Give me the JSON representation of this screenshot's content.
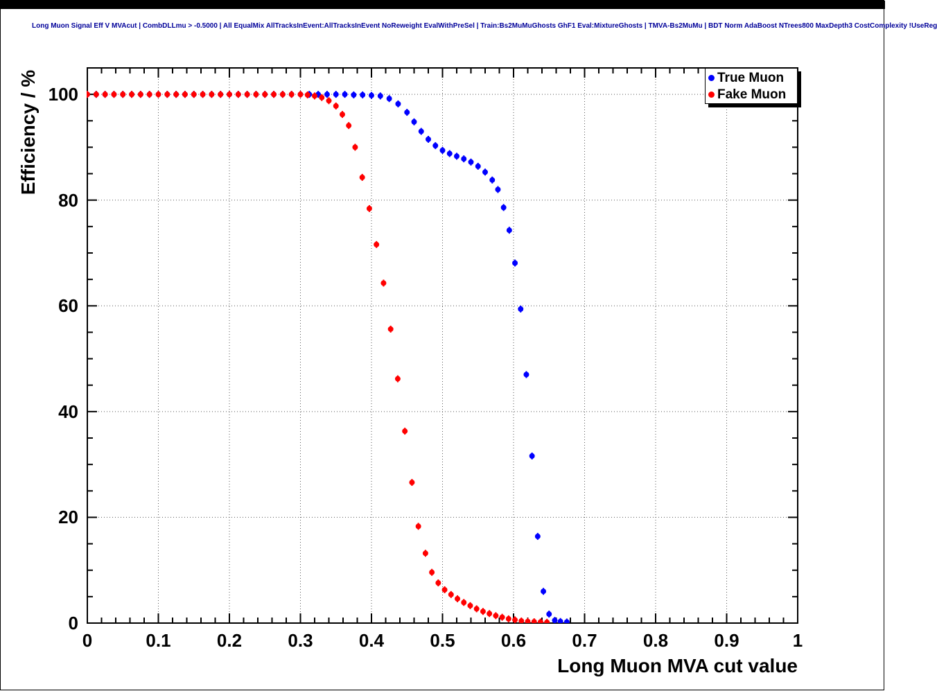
{
  "chart_data": {
    "type": "scatter",
    "title": "Long Muon Signal Eff V MVAcut | CombDLLmu > -0.5000 | All EqualMix AllTracksInEvent:AllTracksInEvent NoReweight EvalWithPreSel | Train:Bs2MuMuGhosts GhF1 Eval:MixtureGhosts | TMVA-Bs2MuMu | BDT Norm AdaBoost NTrees800 MaxDepth3 CostComplexity !UseReg",
    "title_color": "#000099",
    "xlabel": "Long Muon MVA cut value",
    "ylabel": "Efficiency / %",
    "xlim": [
      0,
      1
    ],
    "ylim": [
      0,
      105
    ],
    "x_major_ticks": [
      0,
      0.1,
      0.2,
      0.3,
      0.4,
      0.5,
      0.6,
      0.7,
      0.8,
      0.9,
      1
    ],
    "x_tick_labels": [
      "0",
      "0.1",
      "0.2",
      "0.3",
      "0.4",
      "0.5",
      "0.6",
      "0.7",
      "0.8",
      "0.9",
      "1"
    ],
    "x_minor_step": 0.02,
    "y_major_ticks": [
      0,
      20,
      40,
      60,
      80,
      100
    ],
    "y_tick_labels": [
      "0",
      "20",
      "40",
      "60",
      "80",
      "100"
    ],
    "y_minor_step": 5,
    "grid": {
      "style": "dotted",
      "color": "#555555"
    },
    "frame_color": "#000000",
    "marker": {
      "shape": "circle",
      "radius": 4,
      "error_bar_halflength": 5
    },
    "legend": {
      "position": "top-right",
      "entries": [
        {
          "label": "True Muon",
          "color": "#0000ff"
        },
        {
          "label": "Fake Muon",
          "color": "#ff0000"
        }
      ]
    },
    "series": [
      {
        "name": "True Muon",
        "color": "#0000ff",
        "points": [
          [
            0,
            100
          ],
          [
            0.0125,
            100
          ],
          [
            0.025,
            100
          ],
          [
            0.0375,
            100
          ],
          [
            0.05,
            100
          ],
          [
            0.0625,
            100
          ],
          [
            0.075,
            100
          ],
          [
            0.0875,
            100
          ],
          [
            0.1,
            100
          ],
          [
            0.1125,
            100
          ],
          [
            0.125,
            100
          ],
          [
            0.1375,
            100
          ],
          [
            0.15,
            100
          ],
          [
            0.1625,
            100
          ],
          [
            0.175,
            100
          ],
          [
            0.1875,
            100
          ],
          [
            0.2,
            100
          ],
          [
            0.2125,
            100
          ],
          [
            0.225,
            100
          ],
          [
            0.2375,
            100
          ],
          [
            0.25,
            100
          ],
          [
            0.2625,
            100
          ],
          [
            0.275,
            100
          ],
          [
            0.2875,
            100
          ],
          [
            0.3,
            100
          ],
          [
            0.3125,
            100
          ],
          [
            0.325,
            100
          ],
          [
            0.3375,
            100
          ],
          [
            0.35,
            100
          ],
          [
            0.3625,
            100
          ],
          [
            0.375,
            99.9
          ],
          [
            0.3875,
            99.9
          ],
          [
            0.4,
            99.8
          ],
          [
            0.4125,
            99.7
          ],
          [
            0.425,
            99.2
          ],
          [
            0.4375,
            98.2
          ],
          [
            0.45,
            96.6
          ],
          [
            0.46,
            94.8
          ],
          [
            0.47,
            93.0
          ],
          [
            0.48,
            91.5
          ],
          [
            0.49,
            90.3
          ],
          [
            0.5,
            89.4
          ],
          [
            0.51,
            88.8
          ],
          [
            0.52,
            88.3
          ],
          [
            0.53,
            87.8
          ],
          [
            0.54,
            87.2
          ],
          [
            0.55,
            86.4
          ],
          [
            0.56,
            85.3
          ],
          [
            0.57,
            83.8
          ],
          [
            0.578,
            82.0
          ],
          [
            0.586,
            78.6
          ],
          [
            0.594,
            74.3
          ],
          [
            0.602,
            68.1
          ],
          [
            0.61,
            59.4
          ],
          [
            0.618,
            47.0
          ],
          [
            0.626,
            31.6
          ],
          [
            0.634,
            16.4
          ],
          [
            0.642,
            6.0
          ],
          [
            0.65,
            1.7
          ],
          [
            0.658,
            0.5
          ],
          [
            0.666,
            0.3
          ],
          [
            0.675,
            0.2
          ]
        ]
      },
      {
        "name": "Fake Muon",
        "color": "#ff0000",
        "points": [
          [
            0,
            100
          ],
          [
            0.0125,
            100
          ],
          [
            0.025,
            100
          ],
          [
            0.0375,
            100
          ],
          [
            0.05,
            100
          ],
          [
            0.0625,
            100
          ],
          [
            0.075,
            100
          ],
          [
            0.0875,
            100
          ],
          [
            0.1,
            100
          ],
          [
            0.1125,
            100
          ],
          [
            0.125,
            100
          ],
          [
            0.1375,
            100
          ],
          [
            0.15,
            100
          ],
          [
            0.1625,
            100
          ],
          [
            0.175,
            100
          ],
          [
            0.1875,
            100
          ],
          [
            0.2,
            100
          ],
          [
            0.2125,
            100
          ],
          [
            0.225,
            100
          ],
          [
            0.2375,
            100
          ],
          [
            0.25,
            100
          ],
          [
            0.2625,
            100
          ],
          [
            0.275,
            100
          ],
          [
            0.2875,
            100
          ],
          [
            0.3,
            100
          ],
          [
            0.31,
            99.9
          ],
          [
            0.32,
            99.7
          ],
          [
            0.33,
            99.4
          ],
          [
            0.34,
            98.8
          ],
          [
            0.35,
            97.8
          ],
          [
            0.359,
            96.2
          ],
          [
            0.368,
            94.1
          ],
          [
            0.377,
            90.0
          ],
          [
            0.387,
            84.3
          ],
          [
            0.397,
            78.4
          ],
          [
            0.407,
            71.6
          ],
          [
            0.417,
            64.3
          ],
          [
            0.427,
            55.6
          ],
          [
            0.437,
            46.2
          ],
          [
            0.447,
            36.3
          ],
          [
            0.457,
            26.6
          ],
          [
            0.466,
            18.3
          ],
          [
            0.476,
            13.2
          ],
          [
            0.485,
            9.6
          ],
          [
            0.494,
            7.6
          ],
          [
            0.503,
            6.3
          ],
          [
            0.512,
            5.4
          ],
          [
            0.521,
            4.6
          ],
          [
            0.53,
            3.9
          ],
          [
            0.539,
            3.3
          ],
          [
            0.548,
            2.7
          ],
          [
            0.557,
            2.2
          ],
          [
            0.566,
            1.8
          ],
          [
            0.575,
            1.4
          ],
          [
            0.584,
            1.1
          ],
          [
            0.593,
            0.8
          ],
          [
            0.602,
            0.6
          ],
          [
            0.611,
            0.4
          ],
          [
            0.62,
            0.3
          ],
          [
            0.629,
            0.25
          ],
          [
            0.638,
            0.2
          ],
          [
            0.647,
            0.15
          ]
        ]
      }
    ]
  }
}
